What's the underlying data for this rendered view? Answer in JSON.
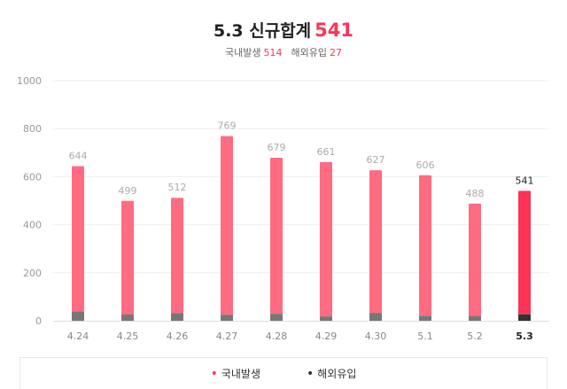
{
  "header": {
    "title": "5.3 신규합계",
    "total": "541",
    "domestic_label": "국내발생",
    "domestic_value": "514",
    "overseas_label": "해외유입",
    "overseas_value": "27"
  },
  "colors": {
    "domestic": "#ff6b81",
    "domestic_highlight": "#ff3355",
    "overseas": "#777777",
    "overseas_highlight": "#333333",
    "label": "#aaaaaa",
    "label_highlight": "#222222"
  },
  "legend": {
    "domestic": "국내발생",
    "overseas": "해외유입",
    "dot": "•"
  },
  "chart_data": {
    "type": "bar",
    "stacked": true,
    "categories": [
      "4.24",
      "4.25",
      "4.26",
      "4.27",
      "4.28",
      "4.29",
      "4.30",
      "5.1",
      "5.2",
      "5.3"
    ],
    "totals": [
      644,
      499,
      512,
      769,
      679,
      661,
      627,
      606,
      488,
      541
    ],
    "series": [
      {
        "name": "국내발생",
        "values": [
          605,
          473,
          480,
          744,
          650,
          643,
          594,
          585,
          468,
          514
        ]
      },
      {
        "name": "해외유입",
        "values": [
          39,
          26,
          32,
          25,
          29,
          18,
          33,
          21,
          20,
          27
        ]
      }
    ],
    "yticks": [
      0,
      200,
      400,
      600,
      800,
      1000
    ],
    "ylim": [
      0,
      1000
    ],
    "highlight_index": 9,
    "grid": true
  }
}
